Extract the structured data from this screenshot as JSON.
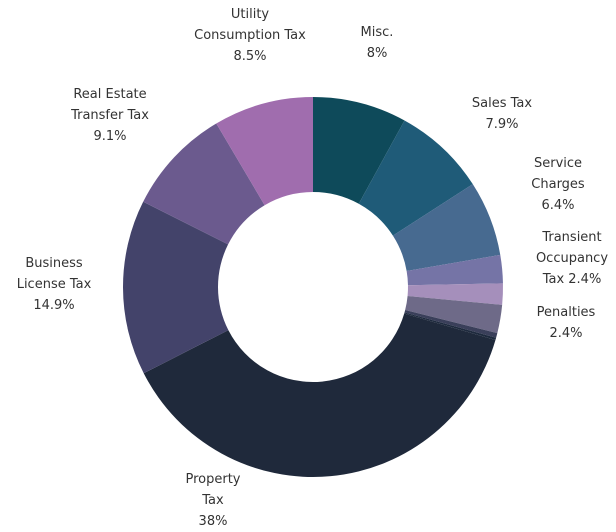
{
  "chart_data": {
    "type": "donut",
    "categories": [
      "Misc.",
      "Sales Tax",
      "Service Charges",
      "Transient Occupancy Tax",
      null,
      "Penalties",
      null,
      null,
      "Property Tax",
      "Business License Tax",
      "Real Estate Transfer Tax",
      "Utility Consumption Tax"
    ],
    "values": [
      8,
      7.9,
      6.4,
      2.4,
      1.8,
      2.4,
      0.4,
      0.2,
      38,
      14.9,
      9.1,
      8.5
    ],
    "value_labels": [
      "8%",
      "7.9%",
      "6.4%",
      "2.4%",
      null,
      "2.4%",
      null,
      null,
      "38%",
      "14.9%",
      "9.1%",
      "8.5%"
    ],
    "colors": [
      "#0e4a5a",
      "#1f5b78",
      "#476a90",
      "#7574a6",
      "#a58fbb",
      "#6e6a88",
      "#3a3f5a",
      "#1e2a3e",
      "#1f293b",
      "#43436a",
      "#6b5a8e",
      "#a06dae"
    ]
  }
}
